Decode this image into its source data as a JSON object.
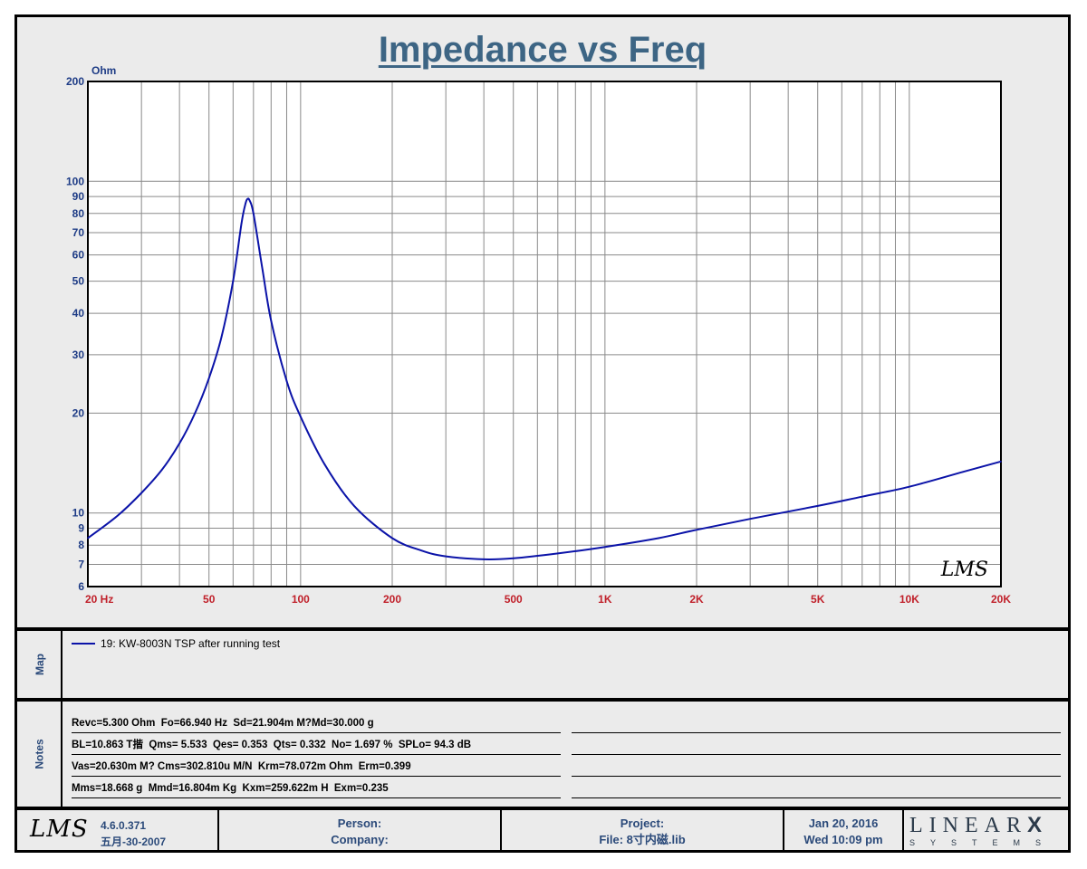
{
  "chart_data": {
    "type": "line",
    "title": "Impedance vs Freq",
    "ylabel": "Ohm",
    "xlabel": "",
    "x_scale": "log",
    "y_scale": "log",
    "xlim": [
      20,
      20000
    ],
    "ylim": [
      6,
      200
    ],
    "x_ticks": [
      {
        "value": 20,
        "label": "20  Hz"
      },
      {
        "value": 50,
        "label": "50"
      },
      {
        "value": 100,
        "label": "100"
      },
      {
        "value": 200,
        "label": "200"
      },
      {
        "value": 500,
        "label": "500"
      },
      {
        "value": 1000,
        "label": "1K"
      },
      {
        "value": 2000,
        "label": "2K"
      },
      {
        "value": 5000,
        "label": "5K"
      },
      {
        "value": 10000,
        "label": "10K"
      },
      {
        "value": 20000,
        "label": "20K"
      }
    ],
    "y_ticks": [
      {
        "value": 6,
        "label": "6"
      },
      {
        "value": 7,
        "label": "7"
      },
      {
        "value": 8,
        "label": "8"
      },
      {
        "value": 9,
        "label": "9"
      },
      {
        "value": 10,
        "label": "10"
      },
      {
        "value": 20,
        "label": "20"
      },
      {
        "value": 30,
        "label": "30"
      },
      {
        "value": 40,
        "label": "40"
      },
      {
        "value": 50,
        "label": "50"
      },
      {
        "value": 60,
        "label": "60"
      },
      {
        "value": 70,
        "label": "70"
      },
      {
        "value": 80,
        "label": "80"
      },
      {
        "value": 90,
        "label": "90"
      },
      {
        "value": 100,
        "label": "100"
      },
      {
        "value": 200,
        "label": "200"
      }
    ],
    "grid": true,
    "watermark": "LMS",
    "series": [
      {
        "name": "19: KW-8003N TSP after  running test",
        "color": "#0b13a8",
        "points": [
          [
            20,
            8.4
          ],
          [
            25,
            9.8
          ],
          [
            30,
            11.5
          ],
          [
            35,
            13.5
          ],
          [
            40,
            16.2
          ],
          [
            45,
            20.0
          ],
          [
            50,
            25.5
          ],
          [
            55,
            34.0
          ],
          [
            60,
            50.0
          ],
          [
            64,
            75.0
          ],
          [
            66,
            86.0
          ],
          [
            67,
            88.5
          ],
          [
            68,
            87.5
          ],
          [
            70,
            80.0
          ],
          [
            75,
            54.0
          ],
          [
            80,
            38.0
          ],
          [
            90,
            25.0
          ],
          [
            100,
            19.5
          ],
          [
            120,
            14.0
          ],
          [
            150,
            10.5
          ],
          [
            200,
            8.4
          ],
          [
            250,
            7.7
          ],
          [
            300,
            7.4
          ],
          [
            400,
            7.25
          ],
          [
            500,
            7.3
          ],
          [
            700,
            7.55
          ],
          [
            1000,
            7.9
          ],
          [
            1500,
            8.4
          ],
          [
            2000,
            8.9
          ],
          [
            3000,
            9.6
          ],
          [
            5000,
            10.5
          ],
          [
            7000,
            11.2
          ],
          [
            10000,
            12.0
          ],
          [
            15000,
            13.3
          ],
          [
            20000,
            14.3
          ]
        ]
      }
    ]
  },
  "map": {
    "label": "Map",
    "legend_entry": "19: KW-8003N TSP after  running test"
  },
  "notes": {
    "label": "Notes",
    "lines": [
      "Revc=5.300 Ohm  Fo=66.940 Hz  Sd=21.904m M?Md=30.000 g",
      "BL=10.863 T揩  Qms= 5.533  Qes= 0.353  Qts= 0.332  No= 1.697 %  SPLo= 94.3 dB",
      "Vas=20.630m M? Cms=302.810u M/N  Krm=78.072m Ohm  Erm=0.399",
      "Mms=18.668 g  Mmd=16.804m Kg  Kxm=259.622m H  Exm=0.235"
    ]
  },
  "footer": {
    "logo": "LMS",
    "version": "4.6.0.371",
    "version_date": "五月-30-2007",
    "person_label": "Person:",
    "company_label": "Company:",
    "project_label": "Project:",
    "file_label": "File: 8寸内磁.lib",
    "date": "Jan 20, 2016",
    "time": "Wed 10:09 pm",
    "brand_top": "LINEAR",
    "brand_x": "X",
    "brand_bottom": "SYSTEMS"
  },
  "colors": {
    "title": "#3d6584",
    "axis_x_labels": "#c0202a",
    "axis_y_labels": "#1e3c86",
    "curve": "#0b13a8",
    "panel_bg": "#ebebeb",
    "plot_bg": "#ffffff"
  }
}
